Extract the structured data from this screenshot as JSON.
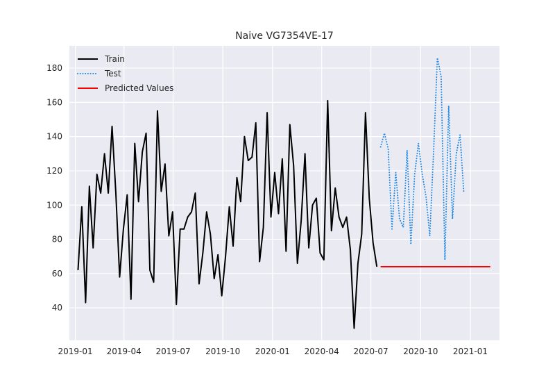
{
  "chart_data": {
    "type": "line",
    "title": "Naive VG7354VE-17",
    "xlabel": "",
    "ylabel": "",
    "x_ticks": [
      "2019-01",
      "2019-04",
      "2019-07",
      "2019-10",
      "2020-01",
      "2020-04",
      "2020-07",
      "2020-10",
      "2021-01"
    ],
    "y_ticks": [
      40,
      60,
      80,
      100,
      120,
      140,
      160,
      180
    ],
    "xlim": [
      "2018-12-21",
      "2021-02-24"
    ],
    "ylim": [
      21,
      193
    ],
    "grid": true,
    "legend_position": "top-left",
    "series": [
      {
        "name": "Train",
        "color": "#000000",
        "style": "solid",
        "x": [
          "2019-01-06",
          "2019-01-13",
          "2019-01-20",
          "2019-01-27",
          "2019-02-03",
          "2019-02-10",
          "2019-02-17",
          "2019-02-24",
          "2019-03-03",
          "2019-03-10",
          "2019-03-17",
          "2019-03-24",
          "2019-03-31",
          "2019-04-07",
          "2019-04-14",
          "2019-04-21",
          "2019-04-28",
          "2019-05-05",
          "2019-05-12",
          "2019-05-19",
          "2019-05-26",
          "2019-06-02",
          "2019-06-09",
          "2019-06-16",
          "2019-06-23",
          "2019-06-30",
          "2019-07-07",
          "2019-07-14",
          "2019-07-21",
          "2019-07-28",
          "2019-08-04",
          "2019-08-11",
          "2019-08-18",
          "2019-08-25",
          "2019-09-01",
          "2019-09-08",
          "2019-09-15",
          "2019-09-22",
          "2019-09-29",
          "2019-10-06",
          "2019-10-13",
          "2019-10-20",
          "2019-10-27",
          "2019-11-03",
          "2019-11-10",
          "2019-11-17",
          "2019-11-24",
          "2019-12-01",
          "2019-12-08",
          "2019-12-15",
          "2019-12-22",
          "2019-12-29",
          "2020-01-05",
          "2020-01-12",
          "2020-01-19",
          "2020-01-26",
          "2020-02-02",
          "2020-02-09",
          "2020-02-16",
          "2020-02-23",
          "2020-03-01",
          "2020-03-08",
          "2020-03-15",
          "2020-03-22",
          "2020-03-29",
          "2020-04-05",
          "2020-04-12",
          "2020-04-19",
          "2020-04-26",
          "2020-05-03",
          "2020-05-10",
          "2020-05-17",
          "2020-05-24",
          "2020-05-31",
          "2020-06-07",
          "2020-06-14",
          "2020-06-21",
          "2020-06-28",
          "2020-07-05",
          "2020-07-12"
        ],
        "values": [
          62,
          99,
          43,
          111,
          75,
          118,
          107,
          130,
          107,
          146,
          107,
          58,
          86,
          106,
          45,
          136,
          102,
          131,
          142,
          62,
          55,
          155,
          108,
          124,
          82,
          96,
          42,
          86,
          86,
          93,
          96,
          107,
          54,
          72,
          96,
          83,
          57,
          71,
          47,
          70,
          99,
          76,
          116,
          102,
          140,
          126,
          128,
          148,
          67,
          87,
          154,
          93,
          119,
          95,
          127,
          73,
          147,
          123,
          66,
          91,
          130,
          75,
          100,
          104,
          72,
          68,
          161,
          85,
          110,
          93,
          87,
          93,
          74,
          28,
          66,
          83,
          154,
          104,
          78,
          64
        ]
      },
      {
        "name": "Test",
        "color": "#1e88e5",
        "style": "dotted",
        "x": [
          "2020-07-19",
          "2020-07-26",
          "2020-08-02",
          "2020-08-09",
          "2020-08-16",
          "2020-08-23",
          "2020-08-30",
          "2020-09-06",
          "2020-09-13",
          "2020-09-20",
          "2020-09-27",
          "2020-10-04",
          "2020-10-11",
          "2020-10-18",
          "2020-10-25",
          "2020-11-01",
          "2020-11-08",
          "2020-11-15",
          "2020-11-22",
          "2020-11-29",
          "2020-12-06",
          "2020-12-13",
          "2020-12-20"
        ],
        "values": [
          134,
          142,
          133,
          86,
          119,
          92,
          87,
          132,
          77,
          118,
          136,
          118,
          105,
          82,
          131,
          186,
          175,
          68,
          158,
          92,
          130,
          141,
          107
        ]
      },
      {
        "name": "Predicted Values",
        "color": "#ff0000",
        "style": "solid",
        "x": [
          "2020-07-19",
          "2021-02-07"
        ],
        "values": [
          64,
          64
        ]
      }
    ]
  }
}
